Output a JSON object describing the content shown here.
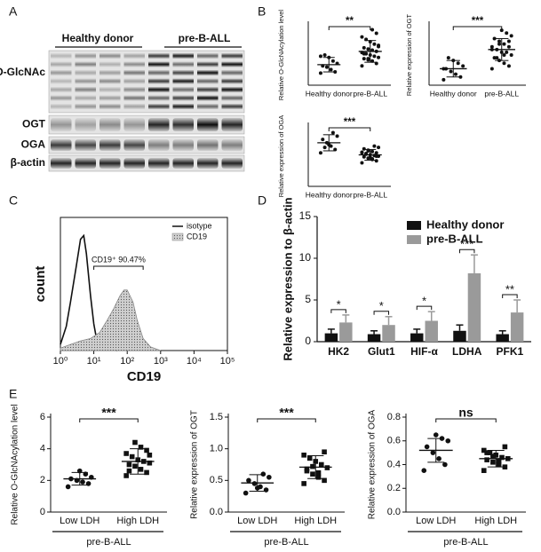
{
  "panel_labels": [
    "A",
    "B",
    "C",
    "D",
    "E"
  ],
  "blot": {
    "groups": [
      "Healthy donor",
      "pre-B-ALL"
    ],
    "rows": [
      "O-GlcNAc",
      "OGT",
      "OGA",
      "β-actin"
    ]
  },
  "chart_data": [
    {
      "type": "dotplot",
      "ylabel": "Relative O-GlcNAcylation level",
      "categories": [
        "Healthy donor",
        "pre-B-ALL"
      ],
      "markers": [
        "circle",
        "circle"
      ],
      "ylim": [
        0,
        5
      ],
      "points": [
        [
          1.0,
          1.1,
          1.3,
          1.5,
          1.6,
          1.8,
          2.0,
          2.3,
          2.5,
          2.4
        ],
        [
          1.6,
          1.8,
          2.0,
          2.1,
          2.2,
          2.3,
          2.4,
          2.5,
          2.6,
          2.7,
          2.8,
          2.9,
          3.0,
          3.1,
          3.2,
          3.4,
          3.6,
          3.8,
          4.0,
          4.3,
          4.6,
          2.2,
          2.6,
          3.3
        ]
      ],
      "mean": [
        1.7,
        2.8
      ],
      "sd": [
        0.6,
        0.9
      ],
      "significance": "**"
    },
    {
      "type": "dotplot",
      "ylabel": "Relative expression of OGT",
      "categories": [
        "Healthy donor",
        "pre-B-ALL"
      ],
      "markers": [
        "circle",
        "circle"
      ],
      "ylim": [
        0,
        1.1
      ],
      "points": [
        [
          0.1,
          0.15,
          0.2,
          0.25,
          0.3,
          0.35,
          0.4,
          0.45,
          0.5,
          0.3
        ],
        [
          0.3,
          0.35,
          0.4,
          0.45,
          0.5,
          0.55,
          0.6,
          0.6,
          0.65,
          0.7,
          0.7,
          0.75,
          0.8,
          0.85,
          0.9,
          0.95,
          1.0,
          0.5,
          0.65,
          0.8,
          0.55,
          0.75
        ]
      ],
      "mean": [
        0.3,
        0.65
      ],
      "sd": [
        0.15,
        0.2
      ],
      "significance": "***"
    },
    {
      "type": "dotplot",
      "ylabel": "Relative expression of OGA",
      "categories": [
        "Healthy donor",
        "pre-B-ALL"
      ],
      "markers": [
        "circle",
        "circle"
      ],
      "ylim": [
        0,
        0.9
      ],
      "points": [
        [
          0.5,
          0.55,
          0.6,
          0.65,
          0.7,
          0.75,
          0.8,
          0.62,
          0.58
        ],
        [
          0.35,
          0.38,
          0.4,
          0.42,
          0.44,
          0.45,
          0.46,
          0.47,
          0.48,
          0.5,
          0.5,
          0.52,
          0.54,
          0.56,
          0.58,
          0.6,
          0.43,
          0.49,
          0.51,
          0.45,
          0.41,
          0.53
        ]
      ],
      "mean": [
        0.65,
        0.47
      ],
      "sd": [
        0.12,
        0.08
      ],
      "significance": "***"
    },
    {
      "type": "flow",
      "xlabel": "CD19",
      "ylabel": "count",
      "log_x": true,
      "xlim": [
        1,
        100000
      ],
      "ylim": [
        0,
        110
      ],
      "xticks": [
        {
          "value": 1,
          "label": "10⁰"
        },
        {
          "value": 10,
          "label": "10¹"
        },
        {
          "value": 100,
          "label": "10²"
        },
        {
          "value": 1000,
          "label": "10³"
        },
        {
          "value": 10000,
          "label": "10⁴"
        },
        {
          "value": 100000,
          "label": "10⁵"
        }
      ],
      "annotation": "CD19⁺  90.47%",
      "series": [
        {
          "name": "isotype",
          "color": "#111111",
          "x": [
            1,
            1.5,
            2,
            3,
            4,
            5,
            6,
            8,
            10,
            12,
            15,
            20,
            30,
            50
          ],
          "values": [
            5,
            20,
            40,
            70,
            92,
            95,
            80,
            45,
            22,
            10,
            5,
            2,
            1,
            0
          ]
        },
        {
          "name": "CD19",
          "color": "#888888",
          "x": [
            1,
            2,
            4,
            8,
            15,
            25,
            40,
            60,
            80,
            100,
            150,
            200,
            300,
            500,
            1000
          ],
          "values": [
            2,
            5,
            8,
            10,
            15,
            25,
            35,
            45,
            50,
            50,
            40,
            25,
            10,
            3,
            0
          ]
        }
      ]
    },
    {
      "type": "bar",
      "ylabel": "Relative expression to β-actin",
      "categories": [
        "HK2",
        "Glut1",
        "HIF-α",
        "LDHA",
        "PFK1"
      ],
      "ylim": [
        0,
        15
      ],
      "yticks": [
        0,
        5,
        10,
        15
      ],
      "legend": "top-right",
      "series": [
        {
          "name": "Healthy donor",
          "color": "#111111",
          "values": [
            1.0,
            0.9,
            1.0,
            1.3,
            0.9
          ],
          "errors": [
            0.5,
            0.4,
            0.5,
            0.7,
            0.4
          ]
        },
        {
          "name": "pre-B-ALL",
          "color": "#9a9a9a",
          "values": [
            2.3,
            2.0,
            2.5,
            8.2,
            3.5
          ],
          "errors": [
            0.9,
            1.0,
            1.1,
            2.2,
            1.5
          ]
        }
      ],
      "significance": [
        "*",
        "*",
        "*",
        "***",
        "**"
      ]
    },
    {
      "type": "dotplot",
      "ylabel": "Relative O-GlcNAcylation level",
      "categories": [
        "Low LDH",
        "High LDH"
      ],
      "group": "pre-B-ALL",
      "markers": [
        "circle",
        "square"
      ],
      "ylim": [
        0,
        6
      ],
      "yticks": [
        0,
        2,
        4,
        6
      ],
      "points": [
        [
          1.6,
          1.8,
          1.9,
          2.0,
          2.1,
          2.2,
          2.4,
          2.6
        ],
        [
          2.3,
          2.5,
          2.7,
          2.9,
          3.0,
          3.1,
          3.2,
          3.3,
          3.5,
          3.7,
          3.9,
          4.1,
          4.4,
          2.6,
          3.6
        ]
      ],
      "mean": [
        2.1,
        3.2
      ],
      "sd": [
        0.4,
        0.8
      ],
      "significance": "***"
    },
    {
      "type": "dotplot",
      "ylabel": "Relative expression of OGT",
      "categories": [
        "Low LDH",
        "High LDH"
      ],
      "group": "pre-B-ALL",
      "markers": [
        "circle",
        "square"
      ],
      "ylim": [
        0,
        1.5
      ],
      "yticks": [
        {
          "value": 0,
          "label": "0.0"
        },
        {
          "value": 0.5,
          "label": "0.5"
        },
        {
          "value": 1,
          "label": "1.0"
        },
        {
          "value": 1.5,
          "label": "1.5"
        }
      ],
      "points": [
        [
          0.3,
          0.35,
          0.4,
          0.45,
          0.5,
          0.55,
          0.6,
          0.38
        ],
        [
          0.45,
          0.5,
          0.55,
          0.6,
          0.65,
          0.7,
          0.75,
          0.8,
          0.85,
          0.9,
          0.95,
          0.62,
          0.72,
          0.68
        ]
      ],
      "mean": [
        0.46,
        0.71
      ],
      "sd": [
        0.13,
        0.18
      ],
      "significance": "***"
    },
    {
      "type": "dotplot",
      "ylabel": "Relative expression of OGA",
      "categories": [
        "Low LDH",
        "High LDH"
      ],
      "group": "pre-B-ALL",
      "markers": [
        "circle",
        "square"
      ],
      "ylim": [
        0,
        0.8
      ],
      "yticks": [
        {
          "value": 0,
          "label": "0.0"
        },
        {
          "value": 0.2,
          "label": "0.2"
        },
        {
          "value": 0.4,
          "label": "0.4"
        },
        {
          "value": 0.6,
          "label": "0.6"
        },
        {
          "value": 0.8,
          "label": "0.8"
        }
      ],
      "points": [
        [
          0.35,
          0.4,
          0.45,
          0.5,
          0.55,
          0.6,
          0.62,
          0.65
        ],
        [
          0.35,
          0.38,
          0.4,
          0.42,
          0.44,
          0.45,
          0.46,
          0.48,
          0.5,
          0.52,
          0.55,
          0.43,
          0.47,
          0.5
        ]
      ],
      "mean": [
        0.52,
        0.45
      ],
      "sd": [
        0.1,
        0.07
      ],
      "significance": "ns"
    }
  ]
}
